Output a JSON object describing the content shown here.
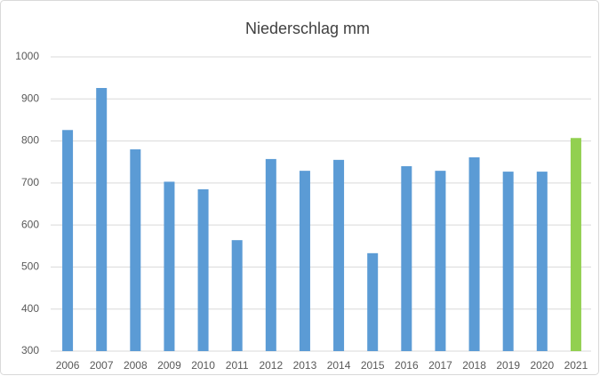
{
  "chart_data": {
    "type": "bar",
    "title": "Niederschlag mm",
    "categories": [
      "2006",
      "2007",
      "2008",
      "2009",
      "2010",
      "2011",
      "2012",
      "2013",
      "2014",
      "2015",
      "2016",
      "2017",
      "2018",
      "2019",
      "2020",
      "2021"
    ],
    "values": [
      826,
      926,
      780,
      703,
      685,
      564,
      757,
      729,
      755,
      533,
      740,
      729,
      761,
      727,
      727,
      807
    ],
    "colors": [
      "#5b9bd5",
      "#5b9bd5",
      "#5b9bd5",
      "#5b9bd5",
      "#5b9bd5",
      "#5b9bd5",
      "#5b9bd5",
      "#5b9bd5",
      "#5b9bd5",
      "#5b9bd5",
      "#5b9bd5",
      "#5b9bd5",
      "#5b9bd5",
      "#5b9bd5",
      "#5b9bd5",
      "#92d050"
    ],
    "ylim": [
      300,
      1000
    ],
    "yticks": [
      300,
      400,
      500,
      600,
      700,
      800,
      900,
      1000
    ],
    "grid": true
  }
}
